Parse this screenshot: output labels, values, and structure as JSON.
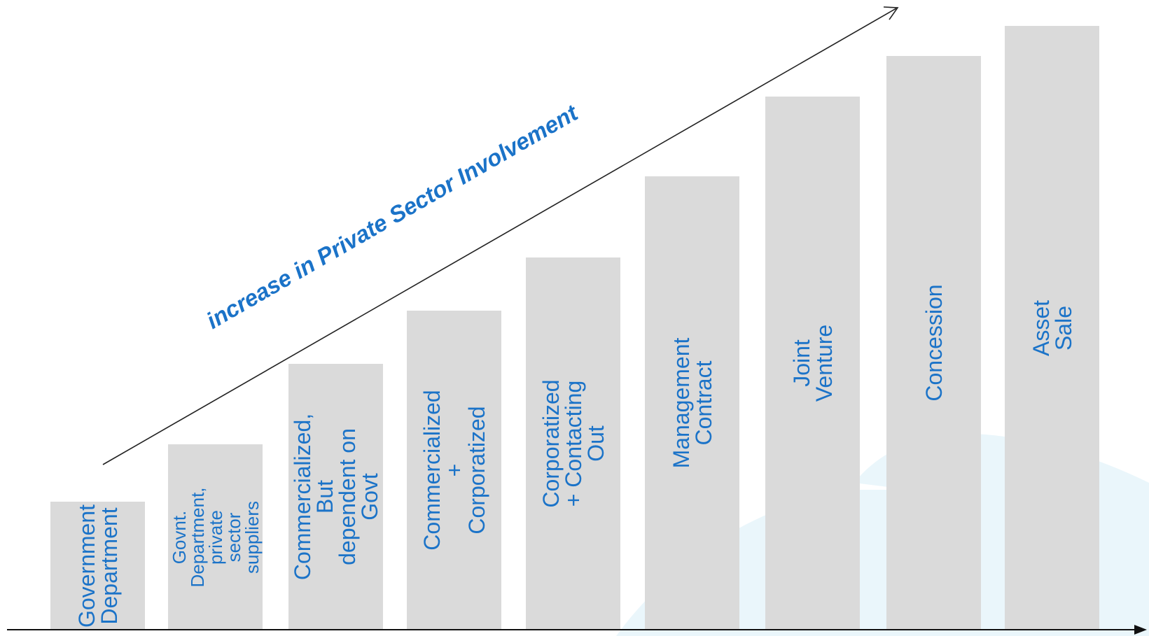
{
  "diagram": {
    "trend_label": "increase in Private Sector Involvement",
    "accent_color": "#1b73c8",
    "bar_color": "#dadada",
    "stages": [
      {
        "label": "Government\nDepartment"
      },
      {
        "label": "Govnt.\nDepartment,\nprivate sector\nsuppliers"
      },
      {
        "label": "Commercialized, But\ndependent on Govt"
      },
      {
        "label": "Commercialized +\nCorporatized"
      },
      {
        "label": "Corporatized + Contacting Out"
      },
      {
        "label": "Management Contract"
      },
      {
        "label": "Joint Venture"
      },
      {
        "label": "Concession"
      },
      {
        "label": "Asset Sale"
      }
    ]
  }
}
